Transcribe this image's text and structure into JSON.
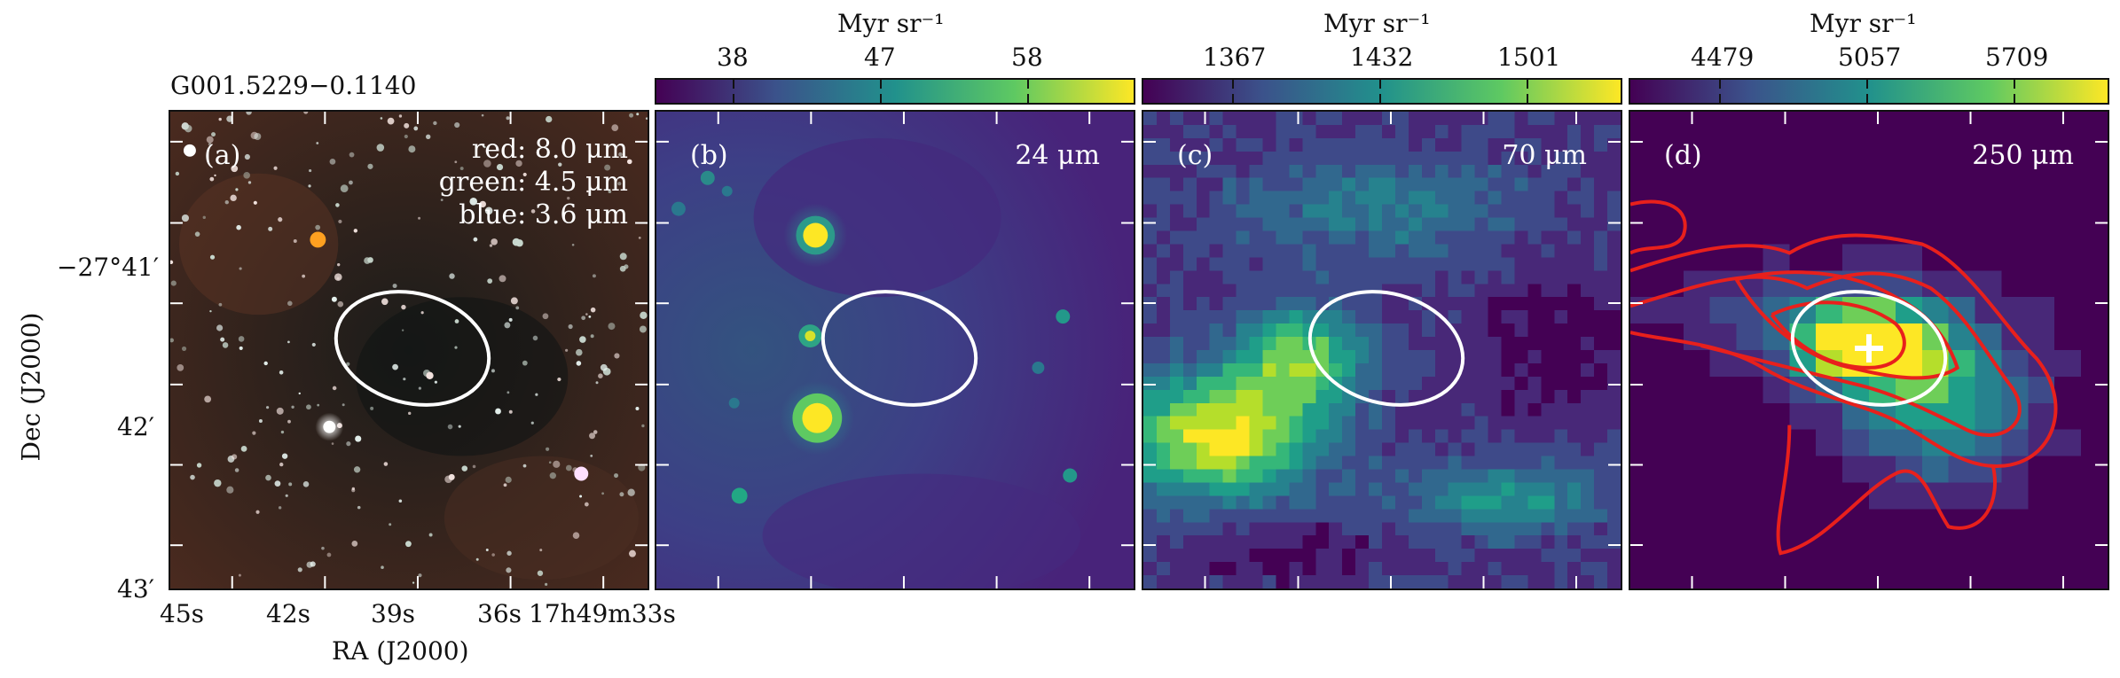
{
  "source_name": "G001.5229−0.1140",
  "axes": {
    "x_label": "RA (J2000)",
    "y_label": "Dec (J2000)",
    "x_ticks": [
      "45s",
      "42s",
      "39s",
      "36s",
      "17h49m33s"
    ],
    "y_ticks": [
      "−27°41′",
      "42′",
      "43′"
    ]
  },
  "colorbar_unit": "Myr sr⁻¹",
  "panels": [
    {
      "id": "a",
      "label": "(a)",
      "legend": [
        "red: 8.0 μm",
        "green: 4.5 μm",
        "blue: 3.6 μm"
      ]
    },
    {
      "id": "b",
      "label": "(b)",
      "wavelength": "24 μm",
      "colorbar_ticks": [
        "38",
        "47",
        "58"
      ]
    },
    {
      "id": "c",
      "label": "(c)",
      "wavelength": "70 μm",
      "colorbar_ticks": [
        "1367",
        "1432",
        "1501"
      ]
    },
    {
      "id": "d",
      "label": "(d)",
      "wavelength": "250 μm",
      "colorbar_ticks": [
        "4479",
        "5057",
        "5709"
      ]
    }
  ],
  "colors": {
    "ellipse": "#ffffff",
    "contours": "#e8201c",
    "viridis_low": "#440154",
    "viridis_high": "#fde725"
  }
}
